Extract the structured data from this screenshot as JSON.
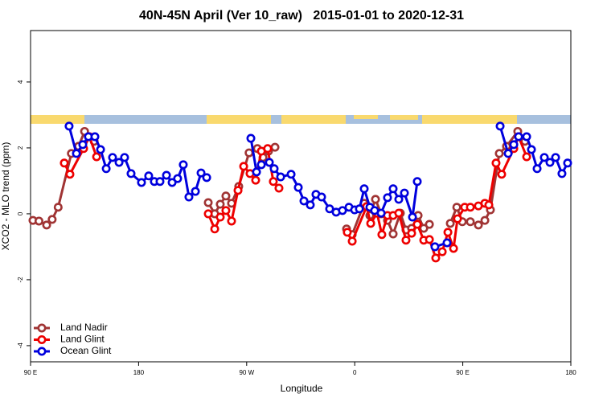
{
  "chart_data": {
    "type": "line",
    "title": "40N-45N April (Ver 10_raw)   2015-01-01 to 2020-12-31",
    "xlabel": "Longitude",
    "ylabel": "XCO2 - MLO trend (ppm)",
    "xlim": [
      90,
      540
    ],
    "ylim": [
      -4.49,
      5.56
    ],
    "xticks": [
      {
        "value": 90,
        "label": "90 E"
      },
      180,
      {
        "value": 270,
        "label": "90 W"
      },
      {
        "value": 360,
        "label": "0"
      },
      {
        "value": 450,
        "label": "90 E"
      },
      180
    ],
    "yticks": [
      4,
      2,
      0,
      -2,
      -4
    ],
    "legend": "bottom-left",
    "series": [
      {
        "name": "Land Nadir",
        "color": "#a03434",
        "x": [
          92,
          97,
          103.4,
          108,
          113,
          124,
          130,
          135,
          143,
          null,
          238,
          243.4,
          248,
          252.7,
          257.4,
          263.4,
          272,
          278.9,
          283.6,
          288.2,
          293.6,
          null,
          353.2,
          357.9,
          367.9,
          372.6,
          377.3,
          382,
          387.3,
          392,
          398,
          402.7,
          407.4,
          412.8,
          417.5,
          422.2,
          null,
          439.6,
          445,
          449.6,
          456.3,
          463,
          468.4,
          473,
          480.4,
          486.4,
          495.8,
          501.8
        ],
        "values": [
          -0.2,
          -0.22,
          -0.34,
          -0.17,
          0.2,
          1.83,
          2.05,
          2.5,
          2.2,
          null,
          0.34,
          0,
          0.29,
          0.54,
          0.32,
          0.83,
          1.85,
          1.98,
          1.71,
          1.9,
          2.02,
          null,
          -0.46,
          -0.63,
          0.32,
          -0.05,
          0.44,
          0,
          -0.2,
          -0.61,
          0.02,
          -0.49,
          -0.44,
          -0.05,
          -0.44,
          -0.32,
          null,
          -0.29,
          0.2,
          -0.24,
          -0.24,
          -0.34,
          -0.2,
          0.12,
          1.83,
          2.05,
          2.5,
          2.2
        ]
      },
      {
        "name": "Land Glint",
        "color": "#ee0000",
        "x": [
          118.1,
          122.8,
          134.2,
          139,
          145,
          null,
          238,
          243.4,
          248,
          252.7,
          257.4,
          262.8,
          267.5,
          272.8,
          277.5,
          282.2,
          287.5,
          292.2,
          296.9,
          null,
          353.8,
          357.9,
          369.9,
          373.3,
          378.6,
          382.6,
          387.3,
          392,
          396.7,
          402.7,
          407.4,
          412.1,
          417.5,
          422.2,
          427.5,
          432.9,
          437.6,
          442.3,
          445.6,
          451.6,
          456.3,
          463,
          468.4,
          471.7,
          477.7,
          482.4,
          492.5,
          496.5,
          503.2
        ],
        "values": [
          1.54,
          1.2,
          1.98,
          2.34,
          1.73,
          null,
          0,
          -0.46,
          -0.1,
          0.1,
          -0.22,
          0.71,
          1.44,
          1.22,
          1.02,
          1.9,
          1.98,
          0.98,
          0.78,
          null,
          -0.56,
          -0.83,
          0.22,
          -0.29,
          0.02,
          -0.63,
          -0.05,
          -0.05,
          0.02,
          -0.8,
          -0.59,
          -0.32,
          -0.8,
          -0.78,
          -1.34,
          -1.15,
          -0.56,
          -1.05,
          -0.15,
          0.2,
          0.2,
          0.24,
          0.32,
          0.27,
          1.54,
          1.2,
          1.98,
          2.34,
          1.73
        ]
      },
      {
        "name": "Ocean Glint",
        "color": "#0000dd",
        "x": [
          122.1,
          128.2,
          133.5,
          138.2,
          143.6,
          148.3,
          153,
          158.3,
          163.7,
          168.3,
          173.7,
          182.4,
          188.4,
          193.1,
          197.8,
          203.2,
          207.9,
          212.5,
          217.2,
          221.9,
          227.3,
          232,
          236.7,
          null,
          273.5,
          278.2,
          282.2,
          288.9,
          292.9,
          298.3,
          307,
          313,
          317.7,
          323,
          327.7,
          332.4,
          339.1,
          344.5,
          349.8,
          355.2,
          359.9,
          363.9,
          367.9,
          372.6,
          376.6,
          382,
          387.3,
          392,
          396.7,
          401.4,
          408.1,
          412.1,
          null,
          426.8,
          436.9,
          null,
          481.1,
          487.8,
          492.5,
          496.5,
          503.2,
          507.2,
          511.9,
          517.9,
          522.6,
          527.3,
          532.6,
          537.3
        ],
        "values": [
          2.66,
          1.83,
          2.1,
          2.34,
          2.34,
          1.95,
          1.37,
          1.71,
          1.56,
          1.71,
          1.22,
          0.95,
          1.15,
          0.98,
          0.98,
          1.17,
          0.95,
          1.07,
          1.49,
          0.51,
          0.68,
          1.24,
          1.1,
          null,
          2.29,
          1.27,
          1.49,
          1.56,
          1.37,
          1.12,
          1.2,
          0.8,
          0.39,
          0.27,
          0.59,
          0.51,
          0.15,
          0.05,
          0.1,
          0.2,
          0.12,
          0.15,
          0.76,
          0.2,
          0.1,
          0.02,
          0.49,
          0.76,
          0.44,
          0.63,
          -0.1,
          0.98,
          null,
          -1,
          -0.88,
          null,
          2.66,
          1.83,
          2.1,
          2.34,
          2.34,
          1.95,
          1.37,
          1.71,
          1.56,
          1.71,
          1.22,
          1.54
        ]
      }
    ]
  }
}
